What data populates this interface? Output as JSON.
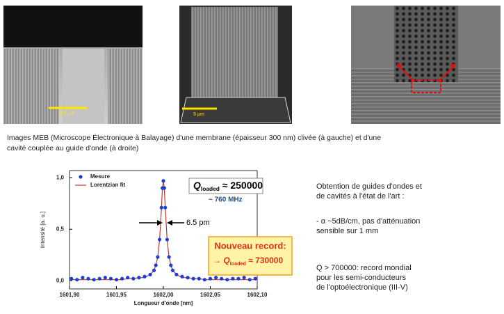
{
  "images": [
    {
      "scale_label": "0.5 µm"
    },
    {
      "scale_label": "5 µm"
    },
    {}
  ],
  "caption": [
    "Images MEB (Microscope Électronique à Balayage) d'une membrane (épaisseur 300 nm) clivée (à gauche) et d'une",
    "cavité couplée au guide d'onde (à droite)"
  ],
  "bullets": [
    [
      "Obtention de guides d'ondes et",
      "de cavités à l'état de l'art :"
    ],
    [
      "- α ~5dB/cm, pas d'atténuation",
      "sensible sur 1 mm"
    ],
    [
      "Q > 700000: record mondial",
      "pour les semi-conducteurs",
      "de l'optoélectronique (III-V)"
    ]
  ],
  "chart_data": {
    "type": "scatter",
    "x_label": "Longueur d'onde [nm]",
    "y_label": "Intensité [a. u.]",
    "xlim": [
      1601.9,
      1602.1
    ],
    "ylim": [
      -0.08,
      1.07
    ],
    "xticks": [
      {
        "value": 1601.9,
        "label": "1601,90"
      },
      {
        "value": 1601.95,
        "label": "1601,95"
      },
      {
        "value": 1602.0,
        "label": "1602,00"
      },
      {
        "value": 1602.05,
        "label": "1602,05"
      },
      {
        "value": 1602.1,
        "label": "1602,10"
      }
    ],
    "yticks": [
      {
        "value": 0,
        "label": "0,0"
      },
      {
        "value": 0.5,
        "label": "0,5"
      },
      {
        "value": 1,
        "label": "1,0"
      }
    ],
    "legend": "upper left",
    "x": [
      1601.902,
      1601.908,
      1601.914,
      1601.92,
      1601.926,
      1601.932,
      1601.938,
      1601.944,
      1601.95,
      1601.956,
      1601.962,
      1601.968,
      1601.974,
      1601.98,
      1601.986,
      1601.99,
      1601.992,
      1601.994,
      1601.996,
      1601.998,
      1601.999,
      1602.0,
      1602.001,
      1602.002,
      1602.004,
      1602.006,
      1602.008,
      1602.01,
      1602.014,
      1602.02,
      1602.026,
      1602.032,
      1602.038,
      1602.044,
      1602.05,
      1602.056,
      1602.062,
      1602.068,
      1602.074,
      1602.08,
      1602.086,
      1602.092,
      1602.098
    ],
    "series": [
      {
        "name": "Mesure",
        "type": "scatter",
        "color": "#1a3fd6",
        "values": [
          0.02,
          0.01,
          0.03,
          0.02,
          0.01,
          0.02,
          0.03,
          0.02,
          0.01,
          0.02,
          0.03,
          0.02,
          0.03,
          0.04,
          0.06,
          0.1,
          0.15,
          0.23,
          0.4,
          0.71,
          0.9,
          0.97,
          0.9,
          0.71,
          0.4,
          0.23,
          0.15,
          0.1,
          0.06,
          0.04,
          0.03,
          0.02,
          0.02,
          0.01,
          0.02,
          0.03,
          0.02,
          0.01,
          0.02,
          0.02,
          0.03,
          0.01,
          0.02
        ]
      },
      {
        "name": "Lorentzian fit",
        "type": "line",
        "color": "#c0392b",
        "values": [
          0.01,
          0.01,
          0.01,
          0.01,
          0.01,
          0.01,
          0.01,
          0.01,
          0.01,
          0.01,
          0.02,
          0.02,
          0.03,
          0.03,
          0.06,
          0.1,
          0.15,
          0.23,
          0.4,
          0.71,
          0.9,
          0.97,
          0.9,
          0.71,
          0.4,
          0.23,
          0.15,
          0.1,
          0.06,
          0.03,
          0.03,
          0.02,
          0.02,
          0.01,
          0.01,
          0.01,
          0.01,
          0.01,
          0.01,
          0.01,
          0.01,
          0.01,
          0.01
        ]
      }
    ],
    "annotations": {
      "q_loaded": [
        "Q",
        "loaded",
        " ≈ 250000"
      ],
      "bandwidth": "~ 760 MHz",
      "fwhm": "6.5 pm",
      "record_title": "Nouveau record:",
      "record_value": [
        "→ ",
        "Q",
        "loaded",
        " ≈ 730000"
      ]
    }
  }
}
